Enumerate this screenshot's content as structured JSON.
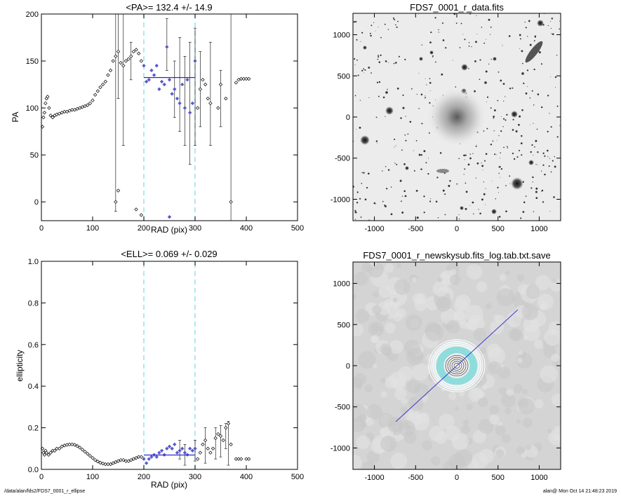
{
  "footer": {
    "path": "/data/alan/fds2/FDS7_0001_r_ellipse",
    "stamp": "alan@  Mon Oct 14 21:48:23 2019"
  },
  "colors": {
    "points": "#000000",
    "fit_points": "#5a5ac8",
    "fit_line": "#2a2ad2",
    "bounds": "#7fe0e0",
    "model_line": "#3a3ad0",
    "rings": "#8fdcdc"
  },
  "chart_data": [
    {
      "id": "pa",
      "type": "scatter",
      "title": "<PA>= 132.4 +/-  14.9",
      "xlabel": "RAD (pix)",
      "ylabel": "PA",
      "xlim": [
        0,
        500
      ],
      "ylim": [
        -20,
        200
      ],
      "xticks": [
        0,
        100,
        200,
        300,
        400,
        500
      ],
      "yticks": [
        0,
        50,
        100,
        150,
        200
      ],
      "vlines": [
        200,
        300
      ],
      "fit": {
        "x": [
          200,
          300
        ],
        "y": 132.4
      },
      "fit_range": [
        200,
        300
      ],
      "points": [
        [
          2,
          80
        ],
        [
          4,
          90
        ],
        [
          6,
          95
        ],
        [
          8,
          105
        ],
        [
          10,
          110
        ],
        [
          12,
          112
        ],
        [
          15,
          100
        ],
        [
          18,
          92
        ],
        [
          22,
          90
        ],
        [
          26,
          92
        ],
        [
          30,
          93
        ],
        [
          35,
          94
        ],
        [
          40,
          95
        ],
        [
          45,
          96
        ],
        [
          50,
          96
        ],
        [
          55,
          97
        ],
        [
          60,
          98
        ],
        [
          65,
          98
        ],
        [
          70,
          99
        ],
        [
          75,
          100
        ],
        [
          80,
          101
        ],
        [
          85,
          102
        ],
        [
          90,
          103
        ],
        [
          95,
          105
        ],
        [
          100,
          108
        ],
        [
          105,
          114
        ],
        [
          110,
          118
        ],
        [
          115,
          122
        ],
        [
          120,
          125
        ],
        [
          125,
          128
        ],
        [
          130,
          135
        ],
        [
          135,
          140
        ],
        [
          140,
          150
        ],
        [
          145,
          155
        ],
        [
          150,
          160
        ],
        [
          155,
          148
        ],
        [
          160,
          145
        ],
        [
          165,
          150
        ],
        [
          170,
          152
        ],
        [
          175,
          155
        ],
        [
          180,
          160
        ],
        [
          185,
          162
        ],
        [
          190,
          158
        ],
        [
          195,
          150
        ],
        [
          200,
          145
        ],
        [
          205,
          128
        ],
        [
          210,
          130
        ],
        [
          215,
          140
        ],
        [
          220,
          135
        ],
        [
          225,
          145
        ],
        [
          230,
          120
        ],
        [
          235,
          128
        ],
        [
          240,
          125
        ],
        [
          245,
          165
        ],
        [
          250,
          130
        ],
        [
          255,
          115
        ],
        [
          260,
          120
        ],
        [
          265,
          110
        ],
        [
          270,
          105
        ],
        [
          275,
          125
        ],
        [
          280,
          100
        ],
        [
          285,
          130
        ],
        [
          290,
          95
        ],
        [
          295,
          105
        ],
        [
          300,
          150
        ],
        [
          305,
          100
        ],
        [
          310,
          120
        ],
        [
          315,
          130
        ],
        [
          320,
          125
        ],
        [
          325,
          110
        ],
        [
          330,
          105
        ],
        [
          345,
          100
        ],
        [
          350,
          125
        ],
        [
          360,
          110
        ],
        [
          370,
          0
        ],
        [
          380,
          127
        ],
        [
          385,
          130
        ],
        [
          390,
          131
        ],
        [
          395,
          131
        ],
        [
          400,
          131
        ],
        [
          405,
          131
        ],
        [
          145,
          0
        ],
        [
          150,
          12
        ],
        [
          185,
          -8
        ],
        [
          195,
          -14
        ],
        [
          250,
          -16
        ]
      ],
      "errors": [
        [
          160,
          200,
          60
        ],
        [
          175,
          170,
          130
        ],
        [
          245,
          195,
          140
        ],
        [
          270,
          175,
          75
        ],
        [
          290,
          170,
          40
        ],
        [
          300,
          185,
          60
        ],
        [
          310,
          160,
          80
        ],
        [
          330,
          170,
          60
        ],
        [
          350,
          140,
          80
        ],
        [
          370,
          200,
          -20
        ],
        [
          145,
          200,
          -10
        ],
        [
          150,
          200,
          110
        ],
        [
          260,
          150,
          90
        ],
        [
          280,
          155,
          60
        ]
      ]
    },
    {
      "id": "ell",
      "type": "scatter",
      "title": "<ELL>= 0.069 +/-  0.029",
      "xlabel": "RAD (pix)",
      "ylabel": "ellipticity",
      "xlim": [
        0,
        500
      ],
      "ylim": [
        0.0,
        1.0
      ],
      "xticks": [
        0,
        100,
        200,
        300,
        400,
        500
      ],
      "yticks": [
        0.0,
        0.2,
        0.4,
        0.6,
        0.8,
        1.0
      ],
      "ytick_labels": [
        "0.0",
        "0.2",
        "0.4",
        "0.6",
        "0.8",
        "1.0"
      ],
      "vlines": [
        200,
        300
      ],
      "fit": {
        "x": [
          200,
          300
        ],
        "y": 0.069
      },
      "fit_range": [
        200,
        300
      ],
      "points": [
        [
          2,
          0.1
        ],
        [
          4,
          0.08
        ],
        [
          6,
          0.07
        ],
        [
          8,
          0.09
        ],
        [
          10,
          0.08
        ],
        [
          14,
          0.07
        ],
        [
          18,
          0.08
        ],
        [
          22,
          0.09
        ],
        [
          26,
          0.09
        ],
        [
          30,
          0.1
        ],
        [
          35,
          0.1
        ],
        [
          40,
          0.11
        ],
        [
          45,
          0.115
        ],
        [
          50,
          0.118
        ],
        [
          55,
          0.12
        ],
        [
          60,
          0.12
        ],
        [
          65,
          0.118
        ],
        [
          70,
          0.112
        ],
        [
          75,
          0.105
        ],
        [
          80,
          0.095
        ],
        [
          85,
          0.085
        ],
        [
          90,
          0.075
        ],
        [
          95,
          0.065
        ],
        [
          100,
          0.055
        ],
        [
          105,
          0.045
        ],
        [
          110,
          0.038
        ],
        [
          115,
          0.032
        ],
        [
          120,
          0.028
        ],
        [
          125,
          0.025
        ],
        [
          130,
          0.025
        ],
        [
          135,
          0.025
        ],
        [
          140,
          0.03
        ],
        [
          145,
          0.035
        ],
        [
          150,
          0.04
        ],
        [
          155,
          0.045
        ],
        [
          160,
          0.045
        ],
        [
          165,
          0.04
        ],
        [
          170,
          0.04
        ],
        [
          175,
          0.045
        ],
        [
          180,
          0.05
        ],
        [
          185,
          0.055
        ],
        [
          190,
          0.06
        ],
        [
          195,
          0.06
        ],
        [
          200,
          0.05
        ],
        [
          205,
          0.03
        ],
        [
          210,
          0.05
        ],
        [
          215,
          0.06
        ],
        [
          220,
          0.07
        ],
        [
          225,
          0.06
        ],
        [
          230,
          0.08
        ],
        [
          235,
          0.09
        ],
        [
          240,
          0.07
        ],
        [
          245,
          0.1
        ],
        [
          250,
          0.11
        ],
        [
          255,
          0.1
        ],
        [
          260,
          0.12
        ],
        [
          265,
          0.08
        ],
        [
          270,
          0.09
        ],
        [
          275,
          0.1
        ],
        [
          280,
          0.08
        ],
        [
          285,
          0.07
        ],
        [
          290,
          0.1
        ],
        [
          295,
          0.09
        ],
        [
          300,
          0.1
        ],
        [
          305,
          0.05
        ],
        [
          310,
          0.08
        ],
        [
          315,
          0.12
        ],
        [
          320,
          0.14
        ],
        [
          325,
          0.1
        ],
        [
          330,
          0.08
        ],
        [
          335,
          0.1
        ],
        [
          340,
          0.15
        ],
        [
          345,
          0.17
        ],
        [
          350,
          0.16
        ],
        [
          355,
          0.14
        ],
        [
          360,
          0.2
        ],
        [
          365,
          0.22
        ],
        [
          370,
          0.12
        ],
        [
          380,
          0.05
        ],
        [
          385,
          0.05
        ],
        [
          390,
          0.05
        ],
        [
          400,
          0.05
        ],
        [
          405,
          0.05
        ]
      ],
      "errors": [
        [
          320,
          0.2,
          0.03
        ],
        [
          340,
          0.2,
          0.05
        ],
        [
          350,
          0.21,
          0.06
        ],
        [
          360,
          0.22,
          0.1
        ],
        [
          365,
          0.23,
          0.02
        ],
        [
          300,
          0.14,
          0.04
        ],
        [
          280,
          0.12,
          0.02
        ],
        [
          270,
          0.14,
          0.05
        ]
      ]
    },
    {
      "id": "img",
      "type": "image",
      "title": "FDS7_0001_r_data.fits",
      "xlim": [
        -1260,
        1260
      ],
      "ylim": [
        -1260,
        1260
      ],
      "xticks": [
        -1000,
        -500,
        0,
        500,
        1000
      ],
      "yticks": [
        -1000,
        -500,
        0,
        500,
        1000
      ]
    },
    {
      "id": "model",
      "type": "image",
      "title": "FDS7_0001_r_newskysub.fits_log.tab.txt.save",
      "xlim": [
        -1260,
        1260
      ],
      "ylim": [
        -1260,
        1260
      ],
      "xticks": [
        -1000,
        -500,
        0,
        500,
        1000
      ],
      "yticks": [
        -1000,
        -500,
        0,
        500,
        1000
      ],
      "line": [
        [
          -740,
          -680
        ],
        [
          740,
          680
        ]
      ]
    }
  ]
}
